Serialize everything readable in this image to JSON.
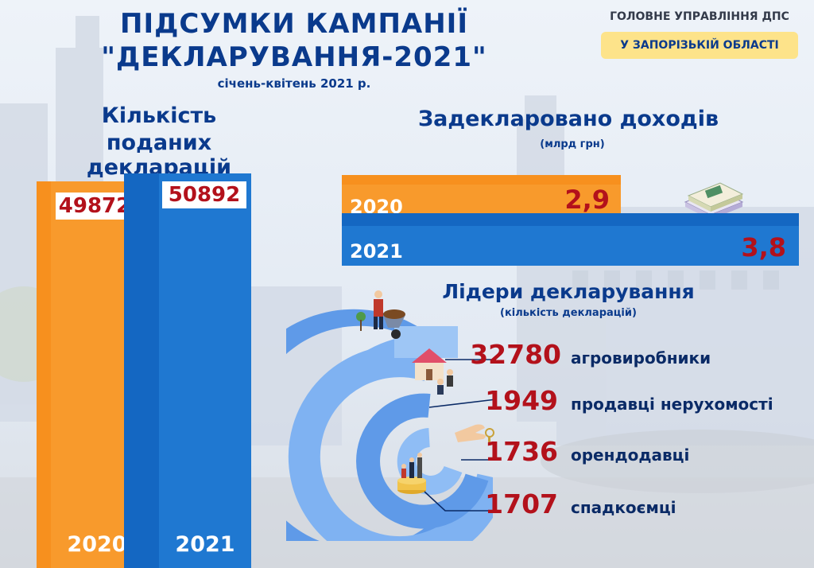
{
  "header": {
    "title_line1": "ПІДСУМКИ КАМПАНІЇ",
    "title_line2": "\"ДЕКЛАРУВАННЯ-2021\"",
    "period": "січень-квітень 2021 р.",
    "org_line1": "ГОЛОВНЕ УПРАВЛІННЯ ДПС",
    "org_line2": "У ЗАПОРІЗЬКІЙ ОБЛАСТІ"
  },
  "colors": {
    "orange": "#f7901e",
    "blue": "#1467c2",
    "dark_blue": "#0a3a8c",
    "red": "#b3111b",
    "yellow": "#fde38a"
  },
  "icons": [
    "document-icon",
    "money-stack-icon",
    "worker-wheelbarrow-icon",
    "house-icon",
    "hand-keys-icon",
    "family-coins-icon"
  ],
  "chart_data": [
    {
      "type": "bar",
      "title_line1": "Кількість",
      "title_line2": "поданих декларацій",
      "categories": [
        "2020",
        "2021"
      ],
      "values": [
        49872,
        50892
      ],
      "value_labels": [
        "49872",
        "50892"
      ],
      "colors": [
        "#f7901e",
        "#1467c2"
      ]
    },
    {
      "type": "bar",
      "orientation": "horizontal",
      "title": "Задекларовано доходів",
      "unit": "(млрд грн)",
      "categories": [
        "2020",
        "2021"
      ],
      "values": [
        2.9,
        3.8
      ],
      "value_labels": [
        "2,9",
        "3,8"
      ],
      "colors": [
        "#f7901e",
        "#1467c2"
      ]
    },
    {
      "type": "table",
      "title": "Лідери декларування",
      "unit": "(кількість декларацій)",
      "rows": [
        {
          "value": 32780,
          "value_label": "32780",
          "label": "агровиробники"
        },
        {
          "value": 1949,
          "value_label": "1949",
          "label": "продавці нерухомості"
        },
        {
          "value": 1736,
          "value_label": "1736",
          "label": "орендодавці"
        },
        {
          "value": 1707,
          "value_label": "1707",
          "label": "спадкоємці"
        }
      ]
    }
  ]
}
